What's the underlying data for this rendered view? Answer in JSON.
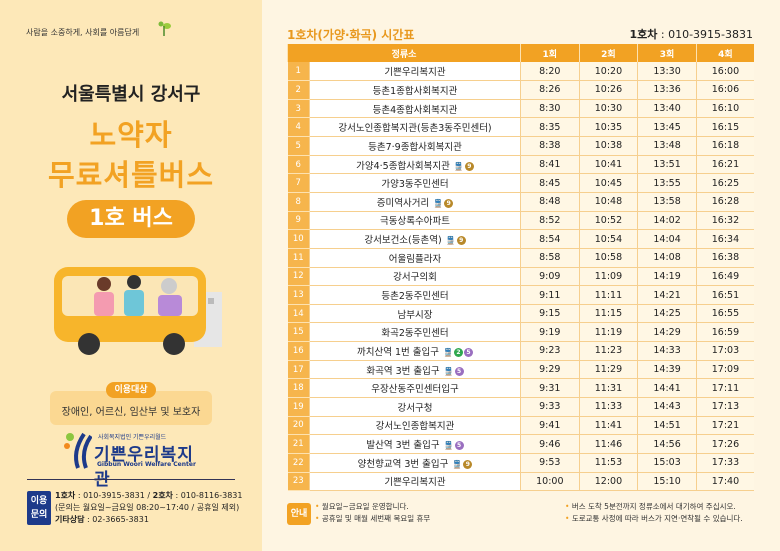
{
  "left": {
    "slogan": "사람을 소중하게, 사회를 아름답게",
    "region": "서울특별시 강서구",
    "title_line1": "노약자",
    "title_line2": "무료셔틀버스",
    "bus_label": "1호 버스",
    "target_label": "이용대상",
    "target_text": "장애인, 어르신, 임산부 및 보호자",
    "logo": {
      "sub": "사회복지법인 기쁜우리월드",
      "name": "기쁜우리복지관",
      "en": "Gibbun Woori Welfare Center"
    },
    "inquiry": {
      "label_line1": "이용",
      "label_line2": "문의",
      "bus1_label": "1호차",
      "bus1_phone": " : 010-3915-3831 / ",
      "bus2_label": "2호차",
      "bus2_phone": " : 010-8116-3831",
      "hours": "(문의는 월요일~금요일 08:20~17:40 / 공휴일 제외)",
      "other_label": "기타상담",
      "other_phone": " : 02-3665-3831"
    }
  },
  "right": {
    "title": "1호차(가양·화곡) 시간표",
    "phone_label": "1호차",
    "phone": " : 010-3915-3831",
    "headers": [
      "정류소",
      "1회",
      "2회",
      "3회",
      "4회"
    ],
    "rows": [
      {
        "n": "1",
        "stop": "기쁜우리복지관",
        "lines": [],
        "t": [
          "8:20",
          "10:20",
          "13:30",
          "16:00"
        ]
      },
      {
        "n": "2",
        "stop": "등촌1종합사회복지관",
        "lines": [],
        "t": [
          "8:26",
          "10:26",
          "13:36",
          "16:06"
        ]
      },
      {
        "n": "3",
        "stop": "등촌4종합사회복지관",
        "lines": [],
        "t": [
          "8:30",
          "10:30",
          "13:40",
          "16:10"
        ]
      },
      {
        "n": "4",
        "stop": "강서노인종합복지관(등촌3동주민센터)",
        "lines": [],
        "t": [
          "8:35",
          "10:35",
          "13:45",
          "16:15"
        ]
      },
      {
        "n": "5",
        "stop": "등촌7·9종합사회복지관",
        "lines": [],
        "t": [
          "8:38",
          "10:38",
          "13:48",
          "16:18"
        ]
      },
      {
        "n": "6",
        "stop": "가양4·5종합사회복지관",
        "lines": [
          "9"
        ],
        "t": [
          "8:41",
          "10:41",
          "13:51",
          "16:21"
        ]
      },
      {
        "n": "7",
        "stop": "가양3동주민센터",
        "lines": [],
        "t": [
          "8:45",
          "10:45",
          "13:55",
          "16:25"
        ]
      },
      {
        "n": "8",
        "stop": "증미역사거리",
        "lines": [
          "9"
        ],
        "t": [
          "8:48",
          "10:48",
          "13:58",
          "16:28"
        ]
      },
      {
        "n": "9",
        "stop": "극동상록수아파트",
        "lines": [],
        "t": [
          "8:52",
          "10:52",
          "14:02",
          "16:32"
        ]
      },
      {
        "n": "10",
        "stop": "강서보건소(등촌역)",
        "lines": [
          "9"
        ],
        "t": [
          "8:54",
          "10:54",
          "14:04",
          "16:34"
        ]
      },
      {
        "n": "11",
        "stop": "어울림플라자",
        "lines": [],
        "t": [
          "8:58",
          "10:58",
          "14:08",
          "16:38"
        ]
      },
      {
        "n": "12",
        "stop": "강서구의회",
        "lines": [],
        "t": [
          "9:09",
          "11:09",
          "14:19",
          "16:49"
        ]
      },
      {
        "n": "13",
        "stop": "등촌2동주민센터",
        "lines": [],
        "t": [
          "9:11",
          "11:11",
          "14:21",
          "16:51"
        ]
      },
      {
        "n": "14",
        "stop": "남부시장",
        "lines": [],
        "t": [
          "9:15",
          "11:15",
          "14:25",
          "16:55"
        ]
      },
      {
        "n": "15",
        "stop": "화곡2동주민센터",
        "lines": [],
        "t": [
          "9:19",
          "11:19",
          "14:29",
          "16:59"
        ]
      },
      {
        "n": "16",
        "stop": "까치산역 1번 출입구",
        "lines": [
          "2",
          "5"
        ],
        "t": [
          "9:23",
          "11:23",
          "14:33",
          "17:03"
        ]
      },
      {
        "n": "17",
        "stop": "화곡역 3번 출입구",
        "lines": [
          "5"
        ],
        "t": [
          "9:29",
          "11:29",
          "14:39",
          "17:09"
        ]
      },
      {
        "n": "18",
        "stop": "우장산동주민센터입구",
        "lines": [],
        "t": [
          "9:31",
          "11:31",
          "14:41",
          "17:11"
        ]
      },
      {
        "n": "19",
        "stop": "강서구청",
        "lines": [],
        "t": [
          "9:33",
          "11:33",
          "14:43",
          "17:13"
        ]
      },
      {
        "n": "20",
        "stop": "강서노인종합복지관",
        "lines": [],
        "t": [
          "9:41",
          "11:41",
          "14:51",
          "17:21"
        ]
      },
      {
        "n": "21",
        "stop": "발산역 3번 출입구",
        "lines": [
          "5"
        ],
        "t": [
          "9:46",
          "11:46",
          "14:56",
          "17:26"
        ]
      },
      {
        "n": "22",
        "stop": "양천향교역 3번 출입구",
        "lines": [
          "9"
        ],
        "t": [
          "9:53",
          "11:53",
          "15:03",
          "17:33"
        ]
      },
      {
        "n": "23",
        "stop": "기쁜우리복지관",
        "lines": [],
        "t": [
          "10:00",
          "12:00",
          "15:10",
          "17:40"
        ]
      }
    ],
    "line_colors": {
      "2": "#2fa84f",
      "5": "#9a6fc0",
      "9": "#b8892a"
    },
    "notice_label": "안내",
    "notes_left": [
      "월요일~금요일 운영합니다.",
      "공휴일 및 매월 세번째 목요일 휴무"
    ],
    "notes_right": [
      "버스 도착 5분전까지 정류소에서 대기하여 주십시오.",
      "도로교통 사정에 따라 버스가 지연·연착될 수 있습니다."
    ]
  },
  "colors": {
    "accent": "#f2a223",
    "navy": "#1d3a8a",
    "left_bg": "#fde8b8",
    "right_bg": "#fef5e2"
  }
}
